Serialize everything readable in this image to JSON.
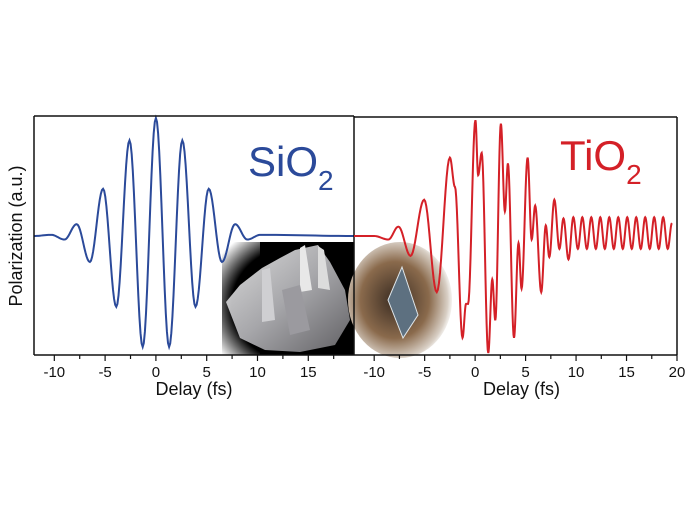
{
  "ylabel": "Polarization (a.u.)",
  "chart_data": [
    {
      "type": "line",
      "title": "SiO",
      "title_subscript": "2",
      "xlabel": "Delay (fs)",
      "ylabel": "Polarization (a.u.)",
      "xlim": [
        -12,
        19.5
      ],
      "ylim": [
        -1.05,
        1.05
      ],
      "xticks": [
        -10,
        -5,
        0,
        5,
        10,
        15
      ],
      "xtick_labels": [
        "-10",
        "-5",
        "0",
        "5",
        "10",
        "15"
      ],
      "grid": false,
      "color": "#2b4a9a",
      "inset_image": "quartz-crystal-photo",
      "extrema": [
        [
          -12,
          0
        ],
        [
          -10.3,
          0.01
        ],
        [
          -9.0,
          -0.03
        ],
        [
          -7.8,
          0.1
        ],
        [
          -6.5,
          -0.22
        ],
        [
          -5.2,
          0.4
        ],
        [
          -3.9,
          -0.6
        ],
        [
          -2.6,
          0.81
        ],
        [
          -1.3,
          -0.94
        ],
        [
          0,
          1.0
        ],
        [
          1.3,
          -0.94
        ],
        [
          2.6,
          0.81
        ],
        [
          3.9,
          -0.6
        ],
        [
          5.2,
          0.4
        ],
        [
          6.5,
          -0.22
        ],
        [
          7.8,
          0.1
        ],
        [
          9.0,
          -0.03
        ],
        [
          10.3,
          0.01
        ],
        [
          19.5,
          0
        ]
      ]
    },
    {
      "type": "line",
      "title": "TiO",
      "title_subscript": "2",
      "xlabel": "Delay (fs)",
      "ylabel": "",
      "xlim": [
        -12,
        20
      ],
      "ylim": [
        -1.05,
        1.05
      ],
      "xticks": [
        -10,
        -5,
        0,
        5,
        10,
        15,
        20
      ],
      "xtick_labels": [
        "-10",
        "-5",
        "0",
        "5",
        "10",
        "15",
        "20"
      ],
      "grid": false,
      "color": "#d42027",
      "inset_image": "rutile-crystal-photo",
      "extrema": [
        [
          -12,
          0
        ],
        [
          -10,
          0
        ],
        [
          -8.6,
          -0.03
        ],
        [
          -7.6,
          0.08
        ],
        [
          -6.4,
          -0.17
        ],
        [
          -5.05,
          0.31
        ],
        [
          -3.8,
          -0.48
        ],
        [
          -2.5,
          0.67
        ],
        [
          -2.0,
          0.42
        ],
        [
          -1.25,
          -0.87
        ],
        [
          -0.9,
          -0.58
        ],
        [
          -0.7,
          -0.58
        ],
        [
          0.03,
          0.99
        ],
        [
          0.3,
          0.52
        ],
        [
          0.65,
          0.71
        ],
        [
          1.3,
          -1.0
        ],
        [
          1.7,
          -0.37
        ],
        [
          2.0,
          -0.72
        ],
        [
          2.55,
          0.96
        ],
        [
          2.95,
          0.21
        ],
        [
          3.25,
          0.62
        ],
        [
          3.85,
          -0.87
        ],
        [
          4.3,
          -0.06
        ],
        [
          4.6,
          -0.45
        ],
        [
          5.2,
          0.67
        ],
        [
          5.6,
          -0.03
        ],
        [
          5.95,
          0.26
        ],
        [
          6.55,
          -0.48
        ],
        [
          7.0,
          0.09
        ],
        [
          7.35,
          -0.18
        ],
        [
          7.85,
          0.31
        ],
        [
          8.35,
          -0.11
        ],
        [
          8.75,
          0.15
        ],
        [
          9.25,
          -0.2
        ],
        [
          9.73,
          0.16
        ],
        [
          10.18,
          -0.11
        ],
        [
          10.62,
          0.16
        ],
        [
          11.07,
          -0.11
        ],
        [
          11.51,
          0.16
        ],
        [
          11.96,
          -0.11
        ],
        [
          12.4,
          0.16
        ],
        [
          12.85,
          -0.11
        ],
        [
          13.29,
          0.16
        ],
        [
          13.74,
          -0.11
        ],
        [
          14.18,
          0.16
        ],
        [
          14.63,
          -0.11
        ],
        [
          15.07,
          0.16
        ],
        [
          15.52,
          -0.11
        ],
        [
          15.96,
          0.16
        ],
        [
          16.41,
          -0.11
        ],
        [
          16.85,
          0.16
        ],
        [
          17.3,
          -0.11
        ],
        [
          17.74,
          0.16
        ],
        [
          18.19,
          -0.11
        ],
        [
          18.63,
          0.16
        ],
        [
          19.08,
          -0.11
        ],
        [
          19.5,
          0.11
        ]
      ]
    }
  ]
}
